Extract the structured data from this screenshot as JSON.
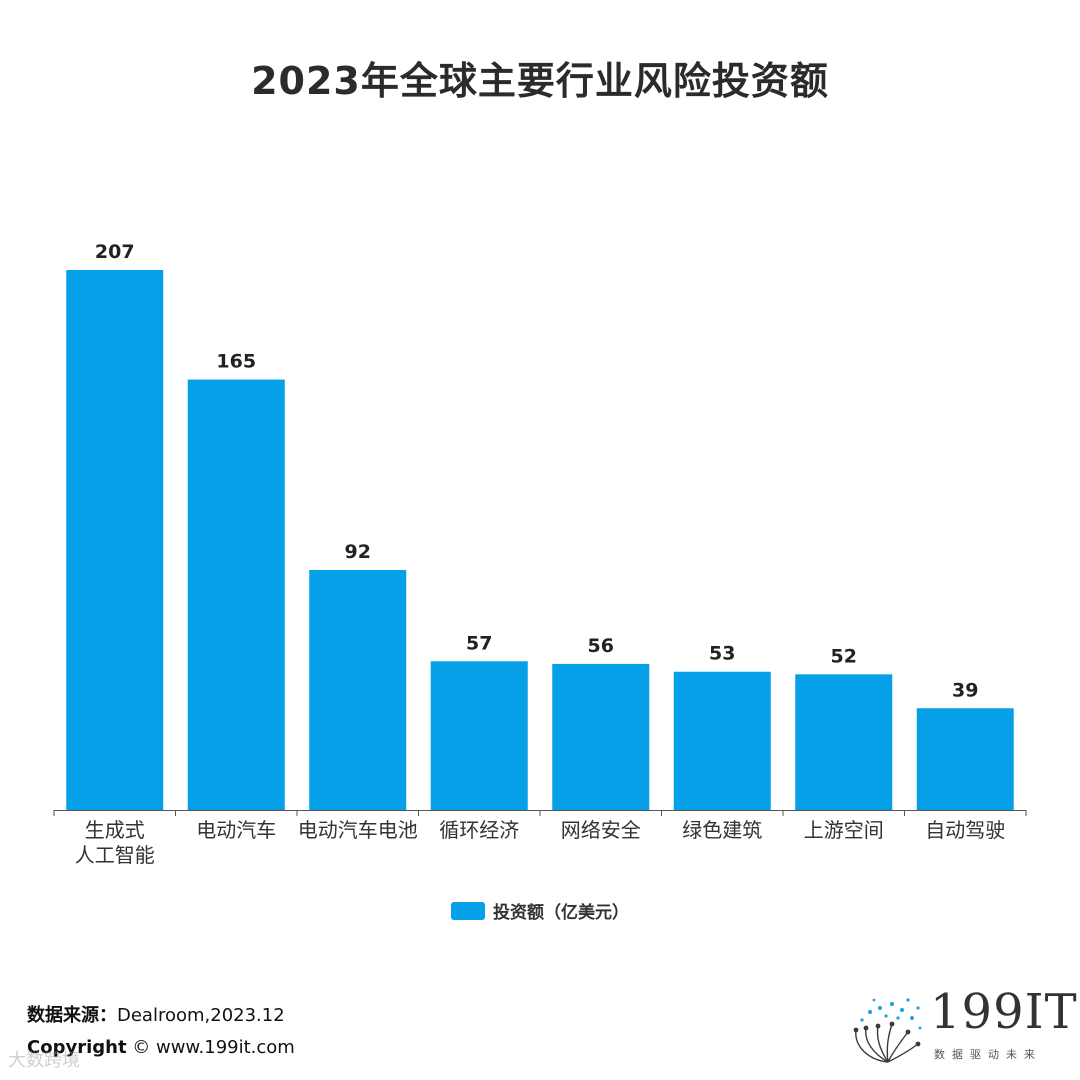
{
  "title": "2023年全球主要行业风险投资额",
  "chart_data": {
    "type": "bar",
    "title": "2023年全球主要行业风险投资额",
    "categories": [
      [
        "生成式",
        "人工智能"
      ],
      [
        "电动汽车"
      ],
      [
        "电动汽车电池"
      ],
      [
        "循环经济"
      ],
      [
        "网络安全"
      ],
      [
        "绿色建筑"
      ],
      [
        "上游空间"
      ],
      [
        "自动驾驶"
      ]
    ],
    "series": [
      {
        "name": "投资额（亿美元）",
        "values": [
          207,
          165,
          92,
          57,
          56,
          53,
          52,
          39
        ]
      }
    ],
    "ylim": [
      0,
      207
    ],
    "grid": false,
    "legend": "bottom-center",
    "bar_color": "#05a0e8"
  },
  "legend": {
    "label": "投资额（亿美元）",
    "color": "#05a0e8"
  },
  "footer": {
    "source_label": "数据来源：",
    "source_value": "Dealroom,2023.12",
    "copyright_label": "Copyright",
    "copyright_value": "© www.199it.com",
    "watermark": "大数跨境"
  },
  "logo": {
    "text": "199IT",
    "subtitle": "数据驱动未来"
  }
}
